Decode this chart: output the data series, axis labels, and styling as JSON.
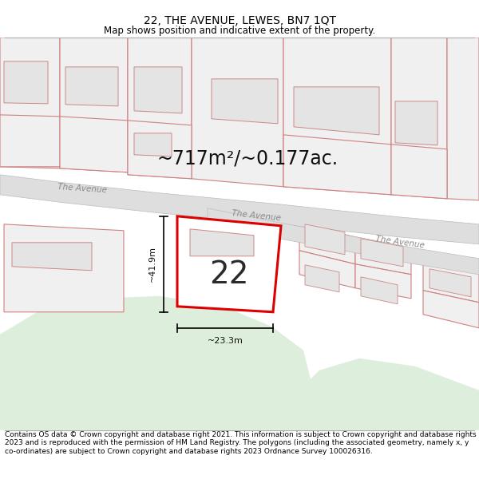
{
  "title": "22, THE AVENUE, LEWES, BN7 1QT",
  "subtitle": "Map shows position and indicative extent of the property.",
  "footer": "Contains OS data © Crown copyright and database right 2021. This information is subject to Crown copyright and database rights 2023 and is reproduced with the permission of HM Land Registry. The polygons (including the associated geometry, namely x, y co-ordinates) are subject to Crown copyright and database rights 2023 Ordnance Survey 100026316.",
  "area_label": "~717m²/~0.177ac.",
  "dim_width": "~23.3m",
  "dim_height": "~41.9m",
  "plot_number": "22",
  "map_bg": "#f9f9f9",
  "road_fill": "#dedede",
  "road_border": "#bbbbbb",
  "plot_line_color": "#dd0000",
  "building_fill": "#e4e4e4",
  "building_stroke": "#cc8888",
  "parcel_fill": "#f0f0f0",
  "parcel_stroke": "#d08080",
  "green_color": "#ddeedd",
  "title_fontsize": 10,
  "subtitle_fontsize": 8.5,
  "footer_fontsize": 6.5,
  "area_fontsize": 17,
  "dim_fontsize": 8,
  "plot_num_fontsize": 28
}
